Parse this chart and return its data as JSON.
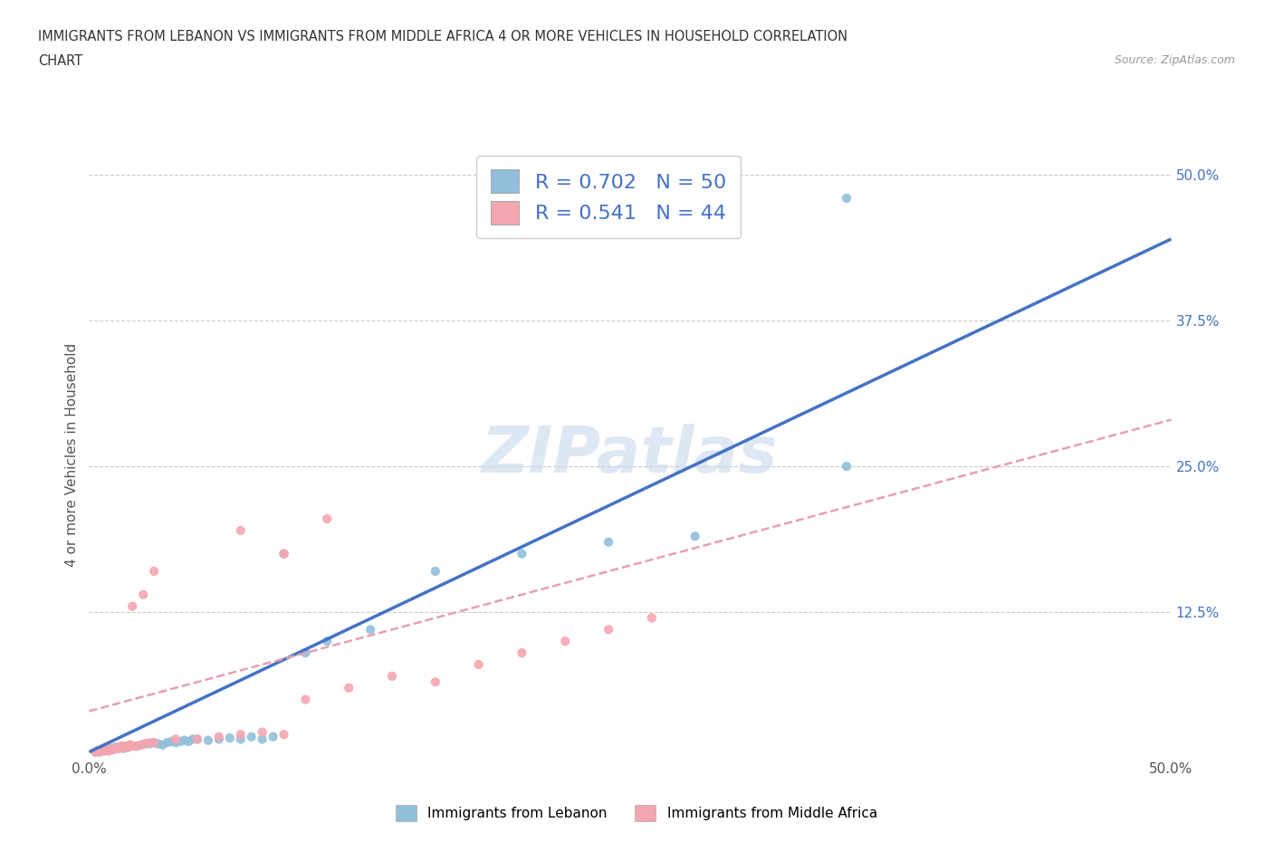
{
  "title_line1": "IMMIGRANTS FROM LEBANON VS IMMIGRANTS FROM MIDDLE AFRICA 4 OR MORE VEHICLES IN HOUSEHOLD CORRELATION",
  "title_line2": "CHART",
  "source": "Source: ZipAtlas.com",
  "watermark": "ZIPatlas",
  "ylabel": "4 or more Vehicles in Household",
  "xlim": [
    0.0,
    0.5
  ],
  "ylim": [
    0.0,
    0.52
  ],
  "xticks": [
    0.0,
    0.1,
    0.2,
    0.3,
    0.4,
    0.5
  ],
  "xticklabels": [
    "0.0%",
    "",
    "",
    "",
    "",
    "50.0%"
  ],
  "ytick_positions": [
    0.0,
    0.125,
    0.25,
    0.375,
    0.5
  ],
  "yticklabels": [
    "",
    "12.5%",
    "25.0%",
    "37.5%",
    "50.0%"
  ],
  "lebanon_color": "#91bfdb",
  "middle_africa_color": "#f4a6b0",
  "lebanon_line_color": "#4472c4",
  "middle_africa_line_color": "#e8a0b0",
  "R_lebanon": 0.702,
  "N_lebanon": 50,
  "R_middle_africa": 0.541,
  "N_middle_africa": 44,
  "legend_label_lebanon": "Immigrants from Lebanon",
  "legend_label_middle_africa": "Immigrants from Middle Africa",
  "stat_text_color": "#4472c4",
  "background_color": "#ffffff",
  "grid_color": "#cccccc",
  "lebanon_line_slope": 0.88,
  "lebanon_line_intercept": 0.005,
  "middle_africa_line_slope": 0.5,
  "middle_africa_line_intercept": 0.04,
  "leb_x": [
    0.003,
    0.004,
    0.005,
    0.006,
    0.007,
    0.008,
    0.009,
    0.01,
    0.011,
    0.012,
    0.013,
    0.014,
    0.015,
    0.016,
    0.017,
    0.018,
    0.019,
    0.02,
    0.022,
    0.024,
    0.026,
    0.028,
    0.03,
    0.032,
    0.034,
    0.036,
    0.038,
    0.04,
    0.042,
    0.044,
    0.046,
    0.048,
    0.05,
    0.055,
    0.06,
    0.065,
    0.07,
    0.075,
    0.08,
    0.085,
    0.09,
    0.1,
    0.11,
    0.13,
    0.16,
    0.2,
    0.24,
    0.28,
    0.35,
    0.35
  ],
  "leb_y": [
    0.005,
    0.006,
    0.005,
    0.007,
    0.006,
    0.007,
    0.006,
    0.008,
    0.007,
    0.009,
    0.008,
    0.009,
    0.01,
    0.008,
    0.01,
    0.009,
    0.011,
    0.01,
    0.01,
    0.011,
    0.012,
    0.012,
    0.013,
    0.012,
    0.011,
    0.013,
    0.014,
    0.013,
    0.014,
    0.015,
    0.014,
    0.016,
    0.016,
    0.015,
    0.016,
    0.017,
    0.016,
    0.018,
    0.016,
    0.018,
    0.175,
    0.09,
    0.1,
    0.11,
    0.16,
    0.175,
    0.185,
    0.19,
    0.25,
    0.48
  ],
  "af_x": [
    0.003,
    0.004,
    0.005,
    0.006,
    0.007,
    0.008,
    0.009,
    0.01,
    0.011,
    0.012,
    0.013,
    0.014,
    0.015,
    0.016,
    0.017,
    0.018,
    0.019,
    0.02,
    0.022,
    0.024,
    0.026,
    0.028,
    0.03,
    0.04,
    0.05,
    0.06,
    0.07,
    0.08,
    0.09,
    0.1,
    0.12,
    0.14,
    0.16,
    0.18,
    0.2,
    0.22,
    0.24,
    0.26,
    0.02,
    0.025,
    0.03,
    0.07,
    0.09,
    0.11
  ],
  "af_y": [
    0.005,
    0.006,
    0.005,
    0.007,
    0.006,
    0.007,
    0.006,
    0.008,
    0.007,
    0.008,
    0.009,
    0.008,
    0.01,
    0.009,
    0.01,
    0.009,
    0.011,
    0.01,
    0.01,
    0.011,
    0.012,
    0.013,
    0.013,
    0.016,
    0.016,
    0.018,
    0.02,
    0.022,
    0.02,
    0.05,
    0.06,
    0.07,
    0.065,
    0.08,
    0.09,
    0.1,
    0.11,
    0.12,
    0.13,
    0.14,
    0.16,
    0.195,
    0.175,
    0.205
  ]
}
